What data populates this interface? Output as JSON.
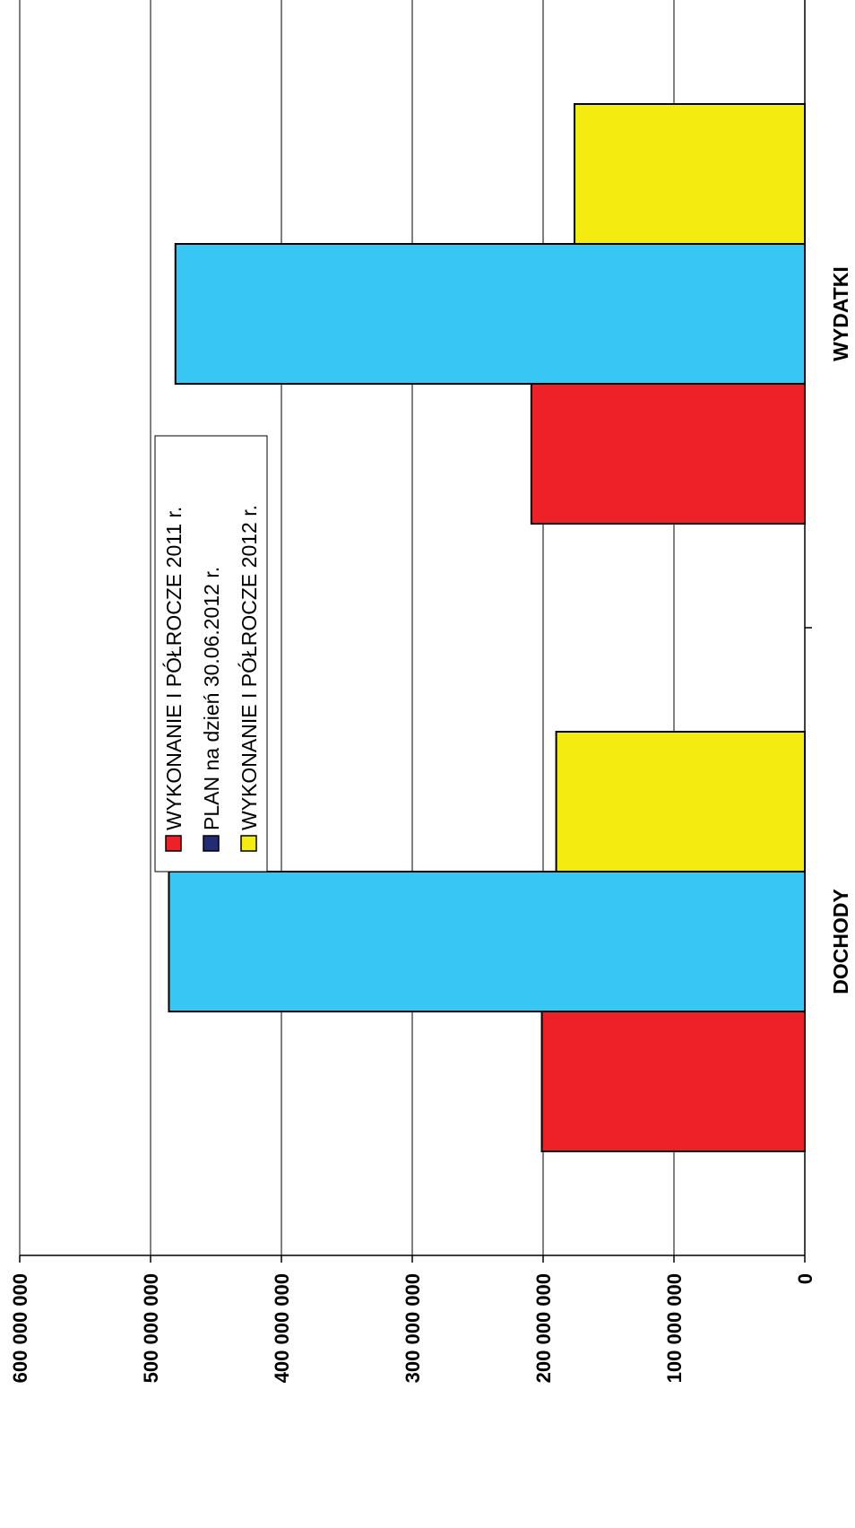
{
  "chart_data": {
    "type": "bar",
    "orientation": "horizontal",
    "categories": [
      "DOCHODY",
      "WYDATKI"
    ],
    "series": [
      {
        "name": "WYKONANIE I PÓŁROCZE 2011 r.",
        "values": [
          201000000,
          209000000
        ],
        "color": "#ee2028",
        "legend_swatch": "#ee2028"
      },
      {
        "name": "PLAN na dzień 30.06.2012 r.",
        "values": [
          486000000,
          481000000
        ],
        "color": "#38c6f4",
        "legend_swatch": "#232c73"
      },
      {
        "name": "WYKONANIE I PÓŁROCZE 2012 r.",
        "values": [
          190000000,
          176000000
        ],
        "color": "#f4ec10",
        "legend_swatch": "#f4ec10"
      }
    ],
    "value_ticks": [
      "0",
      "100 000 000",
      "200 000 000",
      "300 000 000",
      "400 000 000",
      "500 000 000",
      "600 000 000"
    ],
    "value_range": [
      0,
      600000000
    ],
    "grid": true,
    "legend": "center"
  }
}
